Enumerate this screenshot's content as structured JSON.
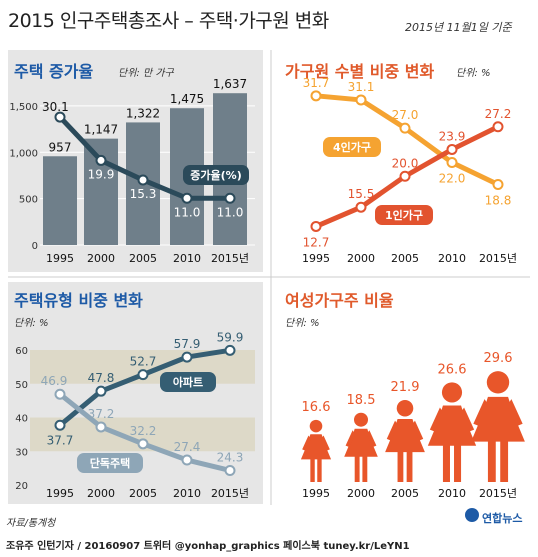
{
  "header": {
    "title": "2015 인구주택총조사 – 주택·가구원 변화",
    "date": "2015년 11월1일 기준"
  },
  "footer": {
    "source": "자료/통계청",
    "credit": "조유주 인턴기자 / 20160907   트위터 @yonhap_graphics  페이스북 tuney.kr/LeYN1",
    "logo": "연합뉴스"
  },
  "colors": {
    "panel_bg": "#e6e6e6",
    "blue_title": "#1d5aa6",
    "orange_title": "#e05a2b",
    "bar": "#6f7f8a",
    "line_dark": "#2b4a5a",
    "orange_line": "#f5a331",
    "red_line": "#e2532f",
    "apt_line": "#355e73",
    "house_line": "#8ea6b7",
    "woman": "#e8562a"
  },
  "chart_data": [
    {
      "type": "bar",
      "title": "주택 증가율",
      "unit": "단위: 만 가구",
      "categories": [
        "1995",
        "2000",
        "2005",
        "2010",
        "2015년"
      ],
      "values": [
        957,
        1147,
        1322,
        1475,
        1637
      ],
      "value_labels": [
        "957",
        "1,147",
        "1,322",
        "1,475",
        "1,637"
      ],
      "yticks": [
        "0",
        "500",
        "1,000",
        "1,500"
      ],
      "ylim": [
        0,
        1650
      ],
      "overlay_line": {
        "name": "증가율(%)",
        "values": [
          30.1,
          19.9,
          15.3,
          11.0,
          11.0
        ],
        "value_labels": [
          "30.1",
          "19.9",
          "15.3",
          "11.0",
          "11.0"
        ],
        "ylim": [
          0,
          36
        ]
      }
    },
    {
      "type": "line",
      "title": "가구원 수별 비중 변화",
      "unit": "단위: %",
      "categories": [
        "1995",
        "2000",
        "2005",
        "2010",
        "2015년"
      ],
      "ylim": [
        10,
        34
      ],
      "series": [
        {
          "name": "4인가구",
          "values": [
            31.7,
            31.1,
            27.0,
            22.0,
            18.8
          ],
          "labels": [
            "31.7",
            "31.1",
            "27.0",
            "22.0",
            "18.8"
          ]
        },
        {
          "name": "1인가구",
          "values": [
            12.7,
            15.5,
            20.0,
            23.9,
            27.2
          ],
          "labels": [
            "12.7",
            "15.5",
            "20.0",
            "23.9",
            "27.2"
          ]
        }
      ]
    },
    {
      "type": "line",
      "title": "주택유형 비중 변화",
      "unit": "단위: %",
      "categories": [
        "1995",
        "2000",
        "2005",
        "2010",
        "2015년"
      ],
      "yticks": [
        "20",
        "30",
        "40",
        "50",
        "60"
      ],
      "ylim": [
        20,
        60
      ],
      "series": [
        {
          "name": "아파트",
          "values": [
            37.7,
            47.8,
            52.7,
            57.9,
            59.9
          ],
          "labels": [
            "37.7",
            "47.8",
            "52.7",
            "57.9",
            "59.9"
          ]
        },
        {
          "name": "단독주택",
          "values": [
            46.9,
            37.2,
            32.2,
            27.4,
            24.3
          ],
          "labels": [
            "46.9",
            "37.2",
            "32.2",
            "27.4",
            "24.3"
          ]
        }
      ]
    },
    {
      "type": "bar",
      "title": "여성가구주 비율",
      "unit": "단위: %",
      "categories": [
        "1995",
        "2000",
        "2005",
        "2010",
        "2015년"
      ],
      "values": [
        16.6,
        18.5,
        21.9,
        26.6,
        29.6
      ],
      "value_labels": [
        "16.6",
        "18.5",
        "21.9",
        "26.6",
        "29.6"
      ],
      "icon": "woman-icon"
    }
  ]
}
